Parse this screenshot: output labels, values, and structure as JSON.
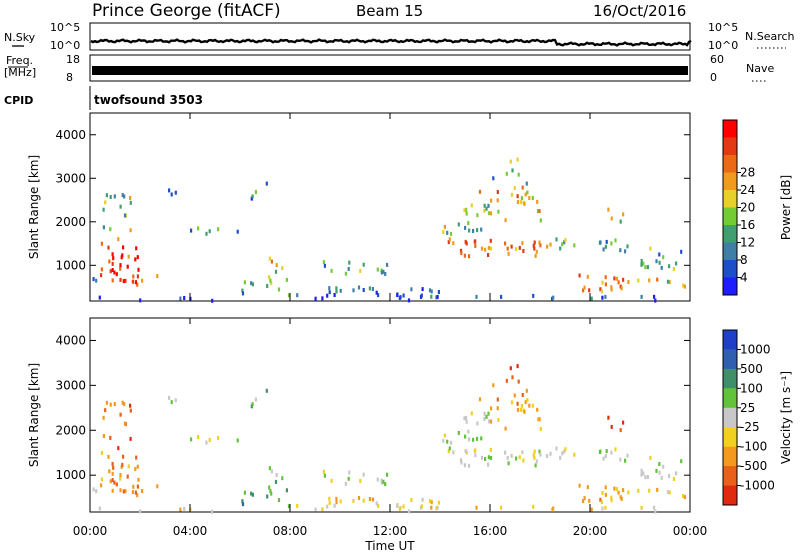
{
  "header": {
    "station": "Prince George (fitACF)",
    "beam": "Beam 15",
    "date": "16/Oct/2016"
  },
  "strips": {
    "nsky": {
      "label": "N.Sky",
      "ticks": [
        "10^5",
        "10^0"
      ],
      "right_label": "N.Search",
      "right_ticks": [
        "10^5",
        "10^0"
      ]
    },
    "freq": {
      "label_line1": "Freq.",
      "label_line2": "[MHz]",
      "ticks": [
        "18",
        "8"
      ],
      "right_label": "Nave",
      "right_ticks": [
        "60",
        "0"
      ]
    },
    "cpid": {
      "label": "CPID",
      "value": "twofsound 3503"
    }
  },
  "chart_data": [
    {
      "type": "heatmap",
      "title": "",
      "quantity": "Power",
      "ylabel": "Slant Range [km]",
      "yticks": [
        1000,
        2000,
        3000,
        4000
      ],
      "ylim": [
        180,
        4500
      ],
      "colorbar": {
        "label": "Power [dB]",
        "ticks": [
          "4",
          "8",
          "12",
          "16",
          "20",
          "24",
          "28"
        ],
        "colors": [
          "#1d1dff",
          "#1d4fc9",
          "#3f7fa6",
          "#3f9f6e",
          "#74cc35",
          "#e8cf2a",
          "#f09a1e",
          "#ec6a14",
          "#e23a12",
          "#ff0000"
        ]
      }
    },
    {
      "type": "heatmap",
      "title": "",
      "quantity": "Velocity",
      "ylabel": "Slant Range [km]",
      "yticks": [
        1000,
        2000,
        3000,
        4000
      ],
      "ylim": [
        180,
        4500
      ],
      "colorbar": {
        "label": "Velocity [m s⁻¹]",
        "ticks": [
          "1000",
          "500",
          "100",
          "25",
          "-25",
          "-100",
          "-500",
          "-1000"
        ],
        "colors": [
          "#1f3fc9",
          "#2f5fb0",
          "#3f8f6a",
          "#62c23a",
          "#c8c8c8",
          "#f2d020",
          "#f39a1e",
          "#e8601a",
          "#e02a10"
        ]
      }
    }
  ],
  "time_axis": {
    "label": "Time UT",
    "ticks": [
      "00:00",
      "04:00",
      "08:00",
      "12:00",
      "16:00",
      "20:00",
      "00:00"
    ]
  }
}
